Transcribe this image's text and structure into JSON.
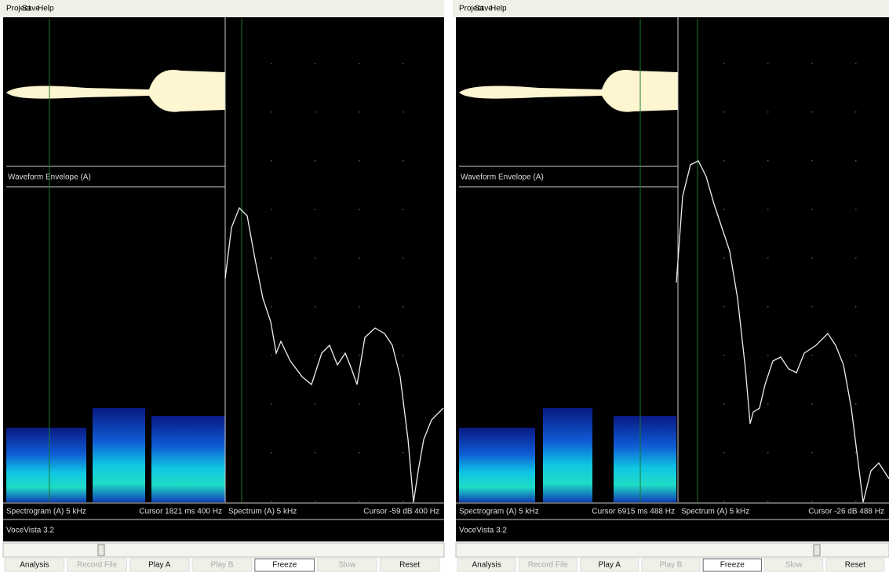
{
  "windows": [
    {
      "menu": [
        "Project",
        "Save",
        "Help"
      ],
      "waveform_label": "Waveform Envelope (A)",
      "spectrogram_label": "Spectrogram (A)  5 kHz",
      "spectrogram_cursor": "Cursor  1821 ms  400 Hz",
      "spectrum_label": "Spectrum (A)  5 kHz",
      "spectrum_cursor": "Cursor  -59 dB  400 Hz",
      "app_name": "VoceVista 3.2",
      "buttons": [
        "Analysis",
        "Record File",
        "Play A",
        "Play B",
        "Freeze",
        "Slow",
        "Reset"
      ]
    },
    {
      "menu": [
        "Project",
        "Save",
        "Help"
      ],
      "waveform_label": "Waveform Envelope (A)",
      "spectrogram_label": "Spectrogram (A)  5 kHz",
      "spectrogram_cursor": "Cursor  6915 ms  488 Hz",
      "spectrum_label": "Spectrum (A)  5 kHz",
      "spectrum_cursor": "Cursor  -26 dB  488 Hz",
      "app_name": "VoceVista 3.2",
      "buttons": [
        "Analysis",
        "Record File",
        "Play A",
        "Play B",
        "Freeze",
        "Slow",
        "Reset"
      ]
    }
  ]
}
